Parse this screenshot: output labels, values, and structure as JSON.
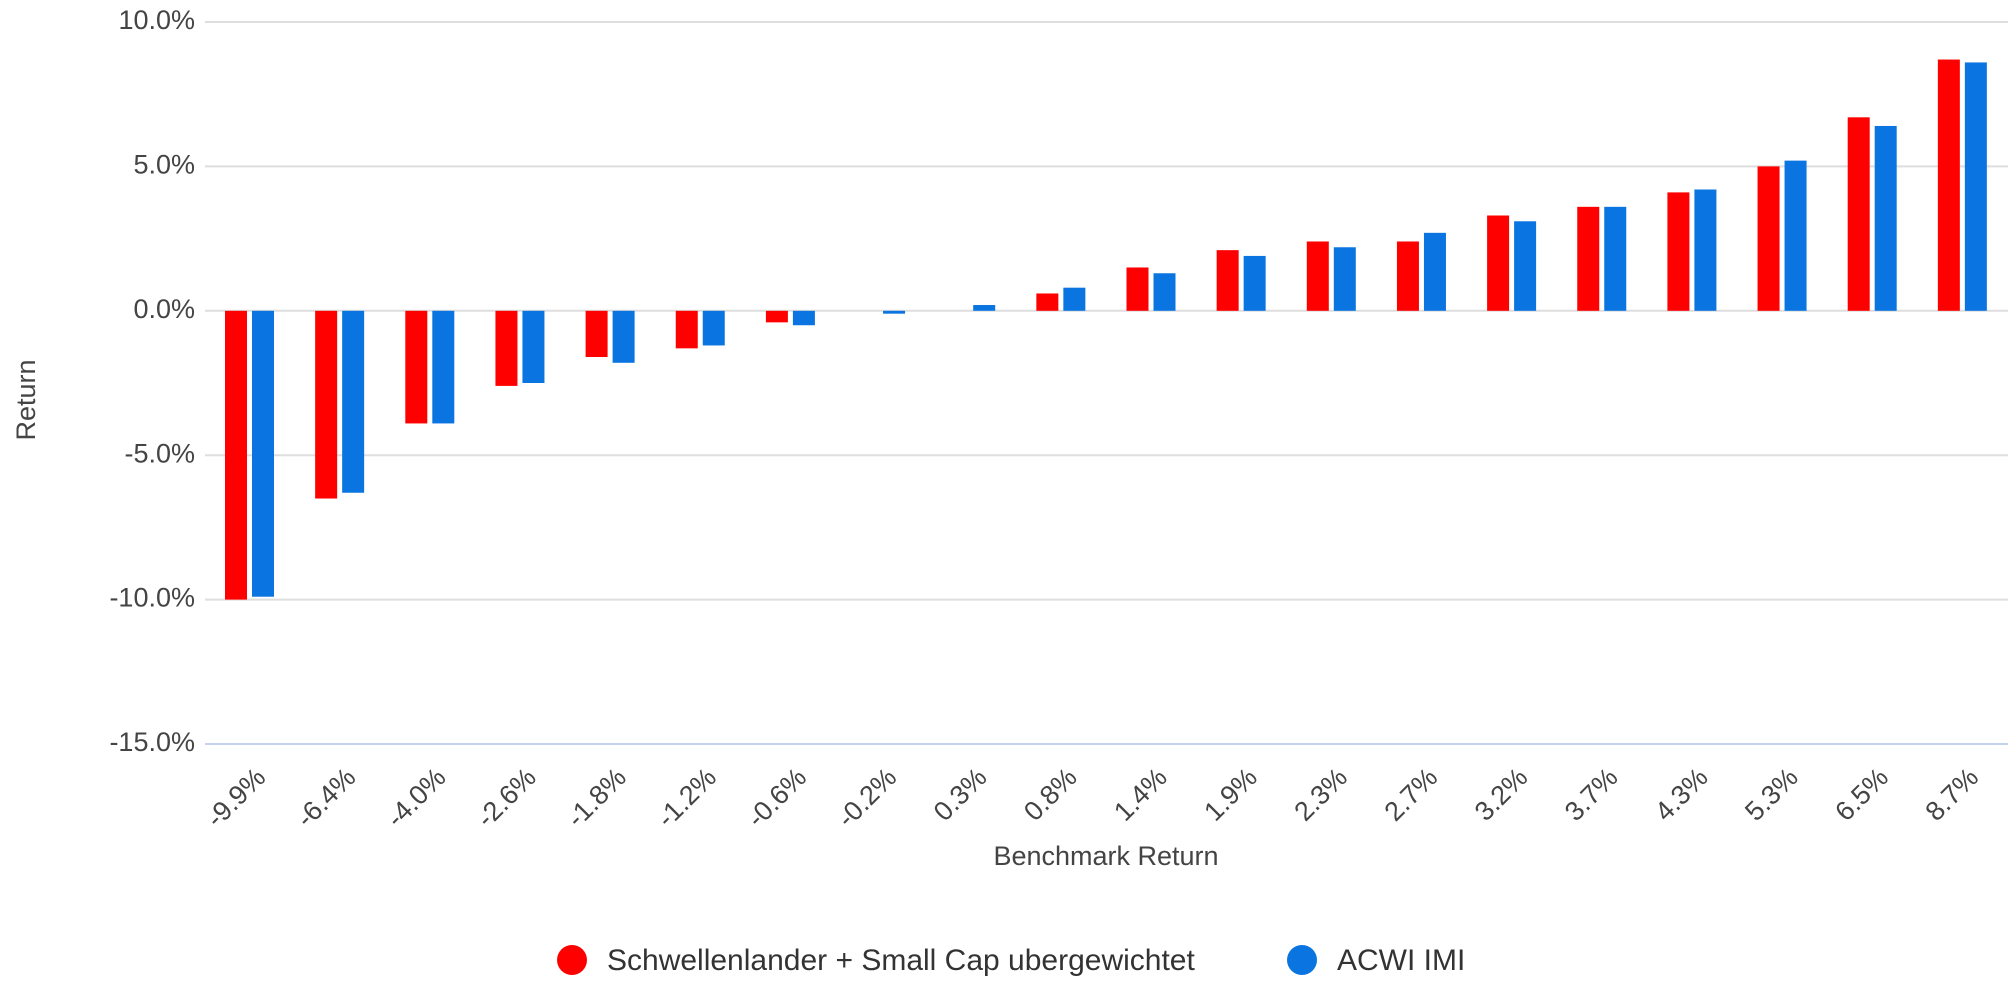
{
  "chart_data": {
    "type": "bar",
    "x_label": "Benchmark Return",
    "y_label": "Return",
    "categories": [
      "-9.9%",
      "-6.4%",
      "-4.0%",
      "-2.6%",
      "-1.8%",
      "-1.2%",
      "-0.6%",
      "-0.2%",
      "0.3%",
      "0.8%",
      "1.4%",
      "1.9%",
      "2.3%",
      "2.7%",
      "3.2%",
      "3.7%",
      "4.3%",
      "5.3%",
      "6.5%",
      "8.7%"
    ],
    "series": [
      {
        "name": "Schwellenlander + Small Cap ubergewichtet",
        "color": "#ff0000",
        "values": [
          -10.0,
          -6.5,
          -3.9,
          -2.6,
          -1.6,
          -1.3,
          -0.4,
          0,
          0,
          0.6,
          1.5,
          2.1,
          2.4,
          2.4,
          3.3,
          3.6,
          4.1,
          5.0,
          6.7,
          8.7
        ]
      },
      {
        "name": "ACWI IMI",
        "color": "#0a74e0",
        "values": [
          -9.9,
          -6.3,
          -3.9,
          -2.5,
          -1.8,
          -1.2,
          -0.5,
          -0.1,
          0.2,
          0.8,
          1.3,
          1.9,
          2.2,
          2.7,
          3.1,
          3.6,
          4.2,
          5.2,
          6.4,
          8.6
        ]
      }
    ],
    "ylim": [
      -15,
      10
    ],
    "yticks": [
      {
        "value": -15,
        "label": "-15.0%"
      },
      {
        "value": -10,
        "label": "-10.0%"
      },
      {
        "value": -5,
        "label": "-5.0%"
      },
      {
        "value": 0,
        "label": "0.0%"
      },
      {
        "value": 5,
        "label": "5.0%"
      },
      {
        "value": 10,
        "label": "10.0%"
      }
    ],
    "grid": true,
    "legend": "bottom"
  }
}
